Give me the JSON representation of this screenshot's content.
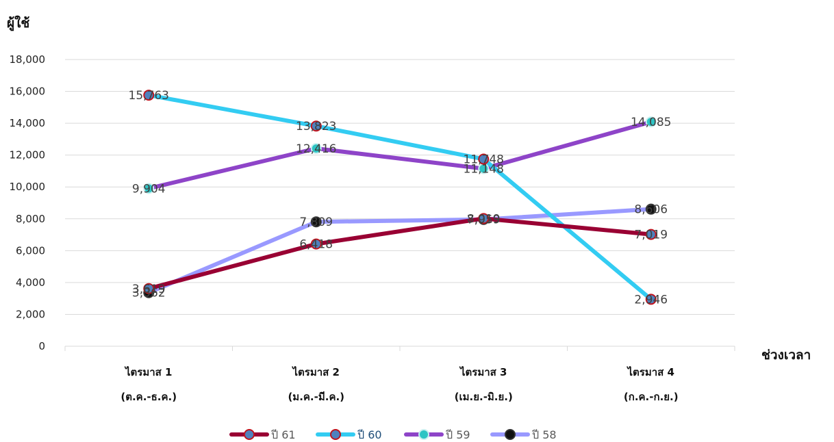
{
  "chart_data": {
    "type": "line",
    "ylabel": "ผู้ใช้",
    "xlabel": "ช่วงเวลา",
    "ylim": [
      0,
      18000
    ],
    "yticks": [
      "0",
      "2,000",
      "4,000",
      "6,000",
      "8,000",
      "10,000",
      "12,000",
      "14,000",
      "16,000",
      "18,000"
    ],
    "grid": true,
    "legend_position": "bottom",
    "categories": [
      {
        "line1": "ไตรมาส 1",
        "line2": "(ต.ค.-ธ.ค.)"
      },
      {
        "line1": "ไตรมาส 2",
        "line2": "(ม.ค.-มี.ค.)"
      },
      {
        "line1": "ไตรมาส 3",
        "line2": "(เม.ย.-มิ.ย.)"
      },
      {
        "line1": "ไตรมาส 4",
        "line2": "(ก.ค.-ก.ย.)"
      }
    ],
    "series": [
      {
        "name": "ปี 58",
        "values": [
          3362,
          7809,
          7959,
          8606
        ],
        "labels": [
          "3,362",
          "7,809",
          "7,959",
          "8,606"
        ],
        "color": "#9999ff",
        "marker_fill": "#111111",
        "marker_stroke": "#333333"
      },
      {
        "name": "ปี 59",
        "values": [
          9904,
          12416,
          11148,
          14085
        ],
        "labels": [
          "9,904",
          "12,416",
          "11,148",
          "14,085"
        ],
        "color": "#8e44c8",
        "marker_fill": "#2ec4c4",
        "marker_stroke": "#c8f0f0"
      },
      {
        "name": "ปี 60",
        "values": [
          15763,
          13823,
          11748,
          2946
        ],
        "labels": [
          "15,763",
          "13,823",
          "11,748",
          "2,946"
        ],
        "color": "#33ccf2",
        "marker_fill": "#4f81bd",
        "marker_stroke": "#c0141e"
      },
      {
        "name": "ปี 61",
        "values": [
          3619,
          6418,
          8019,
          7019
        ],
        "labels": [
          "3,619",
          "6,418",
          "8,019",
          "7,019"
        ],
        "color": "#990033",
        "marker_fill": "#4f81bd",
        "marker_stroke": "#c0141e"
      }
    ],
    "legend_order": [
      "ปี 61",
      "ปี 60",
      "ปี 59",
      "ปี 58"
    ],
    "legend_text_colors": {
      "ปี 61": "#595959",
      "ปี 60": "#1f4e79",
      "ปี 59": "#595959",
      "ปี 58": "#595959"
    }
  }
}
